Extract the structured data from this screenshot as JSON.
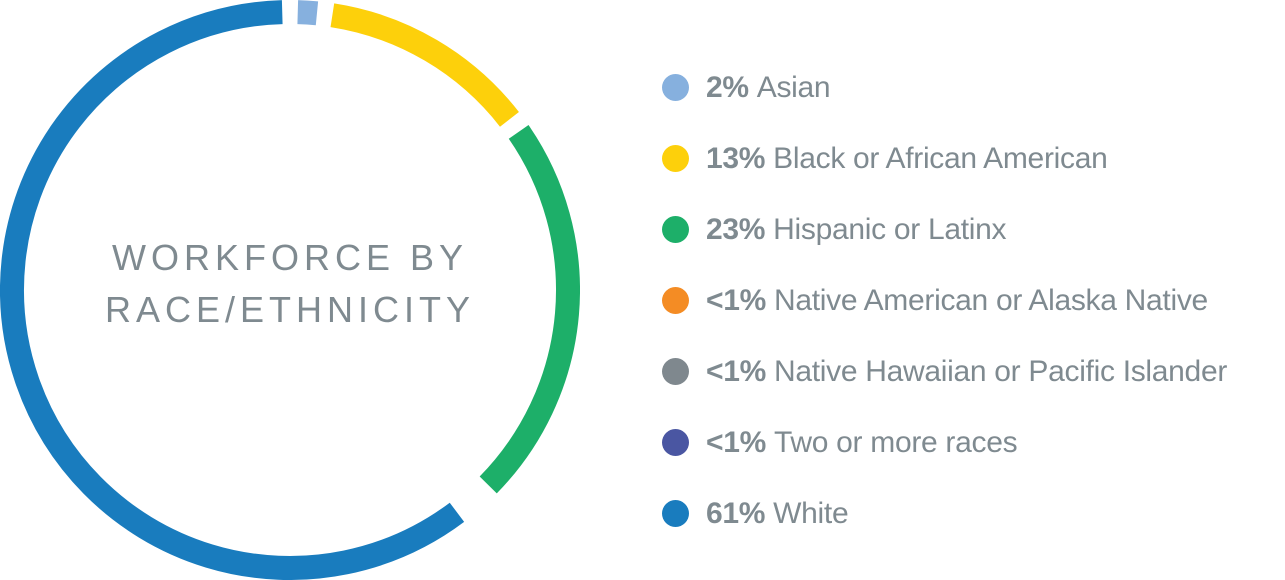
{
  "title": {
    "line1": "WORKFORCE BY",
    "line2": "RACE/ETHNICITY"
  },
  "legend": [
    {
      "pct": "2%",
      "label": "Asian",
      "color": "#86b0de"
    },
    {
      "pct": "13%",
      "label": "Black or African American",
      "color": "#fdd00b"
    },
    {
      "pct": "23%",
      "label": "Hispanic or Latinx",
      "color": "#1daf69"
    },
    {
      "pct": "<1%",
      "label": "Native American or Alaska Native",
      "color": "#f48c24"
    },
    {
      "pct": "<1%",
      "label": "Native Hawaiian or Pacific Islander",
      "color": "#7f888e"
    },
    {
      "pct": "<1%",
      "label": "Two or more races",
      "color": "#4a56a2"
    },
    {
      "pct": "61%",
      "label": "White",
      "color": "#197cbe"
    }
  ],
  "chart_data": {
    "type": "pie",
    "variant": "donut",
    "title": "WORKFORCE BY RACE/ETHNICITY",
    "categories": [
      "Asian",
      "Black or African American",
      "Hispanic or Latinx",
      "Native American or Alaska Native",
      "Native Hawaiian or Pacific Islander",
      "Two or more races",
      "White"
    ],
    "values": [
      2,
      13,
      23,
      0.5,
      0.5,
      0.5,
      61
    ],
    "value_labels": [
      "2%",
      "13%",
      "23%",
      "<1%",
      "<1%",
      "<1%",
      "61%"
    ],
    "colors": [
      "#86b0de",
      "#fdd00b",
      "#1daf69",
      "#f48c24",
      "#7f888e",
      "#4a56a2",
      "#197cbe"
    ],
    "legend_position": "right",
    "start_angle": "top (12 o'clock), clockwise"
  }
}
